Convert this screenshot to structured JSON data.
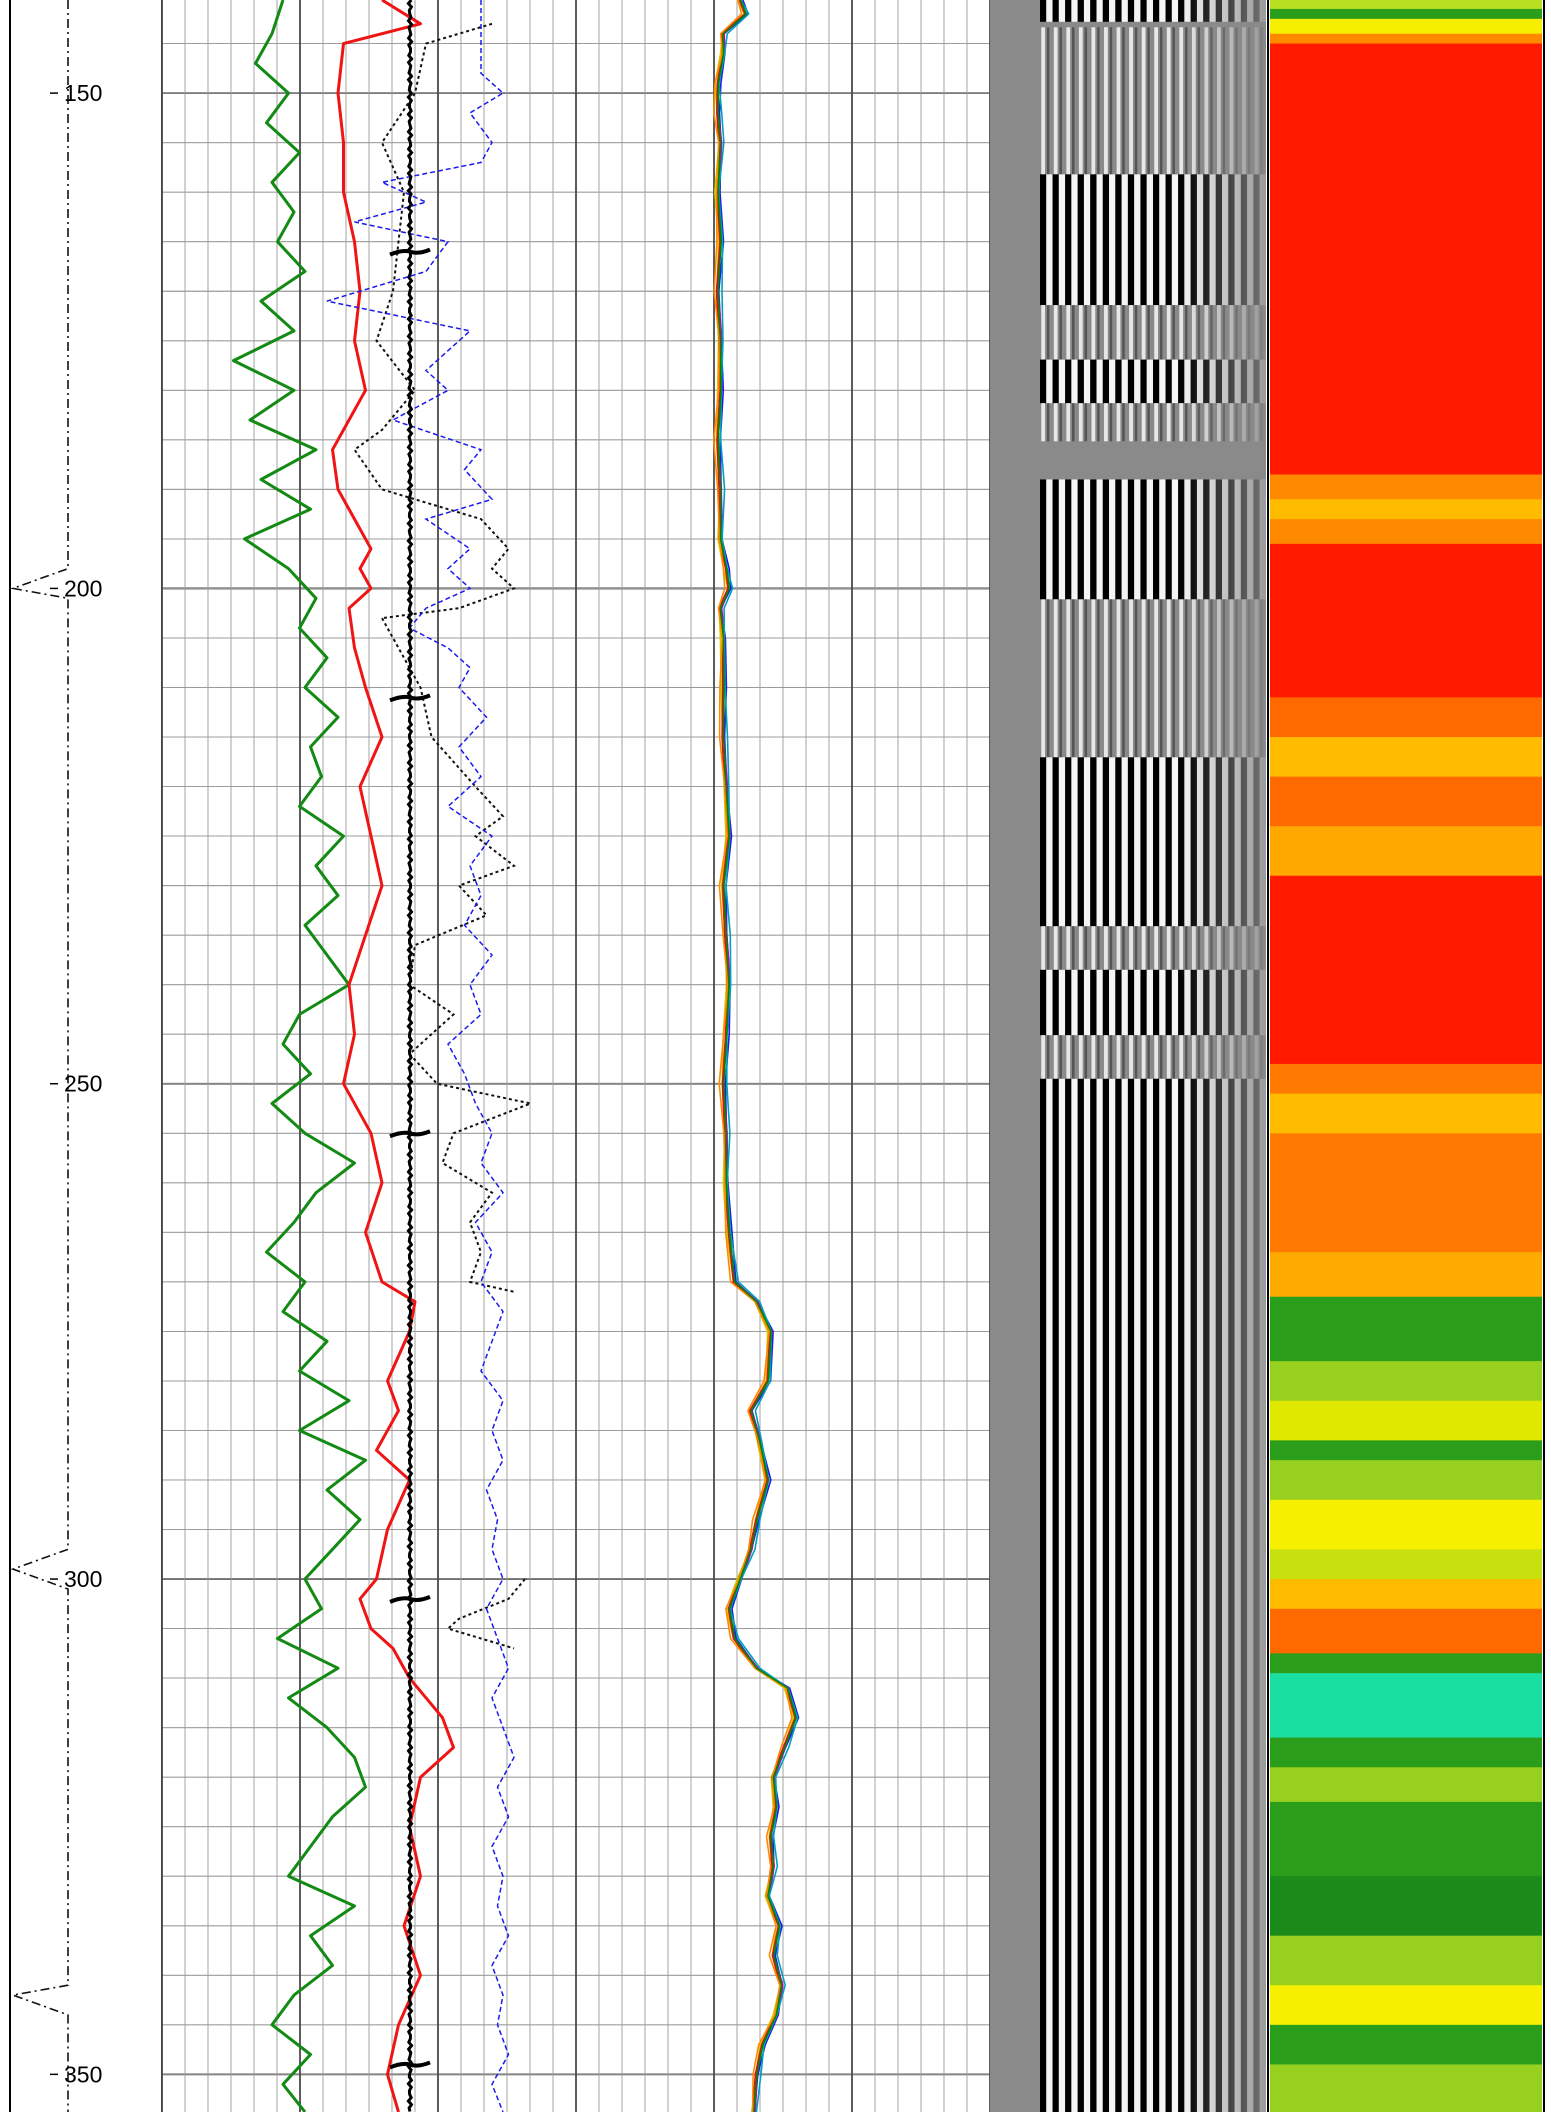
{
  "chart_data": {
    "type": "line",
    "title": "",
    "xlabel": "",
    "ylabel": "",
    "depth_axis": {
      "ylim": [
        140.6,
        353.8
      ],
      "tick_labels": [
        "150",
        "200",
        "250",
        "300",
        "350"
      ],
      "major_ticks": [
        150,
        200,
        250,
        300,
        350
      ],
      "minor_step": 5,
      "grid": true
    },
    "colors": {
      "green_curve": "#138a13",
      "blue_curve": "#1a1aee",
      "red_curve": "#f01414",
      "black_dotted": "#111111",
      "grid_minor": "#9a9a9a",
      "grid_major": "#4a4a4a",
      "gray_panel": "#8a8a8a",
      "heat_red": "#ff1a00",
      "heat_orange": "#ff8a00",
      "heat_yellow": "#f6f000",
      "heat_green": "#2a9d1a",
      "heat_teal": "#19e0a0"
    },
    "track_curves": {
      "xlim": [
        0,
        100
      ],
      "series": [
        {
          "key": "green",
          "style": "solid",
          "depth": [
            140.6,
            144,
            147,
            150,
            153,
            156,
            159,
            162,
            165,
            168,
            171,
            174,
            177,
            180,
            183,
            186,
            189,
            192,
            195,
            198,
            201,
            204,
            207,
            210,
            213,
            216,
            219,
            222,
            225,
            228,
            231,
            234,
            237,
            240,
            243,
            246,
            249,
            252,
            255,
            258,
            261,
            264,
            267,
            270,
            273,
            276,
            279,
            282,
            285,
            288,
            291,
            294,
            297,
            300,
            303,
            306,
            309,
            312,
            315,
            318,
            321,
            324,
            327,
            330,
            333,
            336,
            339,
            342,
            345,
            348,
            351,
            353.8
          ],
          "value": [
            22,
            20,
            17,
            23,
            19,
            25,
            20,
            24,
            21,
            26,
            18,
            24,
            13,
            24,
            16,
            28,
            18,
            27,
            15,
            23,
            28,
            25,
            30,
            26,
            32,
            27,
            29,
            25,
            33,
            28,
            32,
            26,
            30,
            34,
            25,
            22,
            27,
            20,
            26,
            35,
            28,
            24,
            19,
            26,
            22,
            30,
            25,
            34,
            25,
            37,
            30,
            36,
            31,
            26,
            29,
            21,
            32,
            23,
            30,
            35,
            37,
            31,
            27,
            23,
            35,
            27,
            31,
            24,
            20,
            27,
            22,
            26
          ]
        },
        {
          "key": "red",
          "style": "solid",
          "depth": [
            140.6,
            143,
            145,
            150,
            155,
            160,
            165,
            170,
            175,
            180,
            183,
            186,
            190,
            193,
            196,
            198,
            200,
            202,
            206,
            210,
            215,
            220,
            225,
            230,
            235,
            240,
            245,
            250,
            255,
            260,
            265,
            270,
            272,
            275,
            280,
            283,
            287,
            290,
            295,
            300,
            302,
            305,
            307,
            310,
            314,
            317,
            320,
            325,
            330,
            335,
            340,
            345,
            350,
            353.8
          ],
          "value": [
            40,
            47,
            33,
            32,
            33,
            33,
            35,
            36,
            35,
            37,
            34,
            31,
            32,
            35,
            38,
            36,
            38,
            34,
            35,
            37,
            40,
            36,
            38,
            40,
            37,
            34,
            35,
            33,
            38,
            40,
            37,
            40,
            46,
            45,
            41,
            43,
            39,
            45,
            41,
            39,
            36,
            38,
            42,
            45,
            51,
            53,
            47,
            45,
            47,
            44,
            47,
            43,
            41,
            43
          ]
        },
        {
          "key": "black_dotted",
          "style": "dotted",
          "segments": [
            {
              "depth": [
                143,
                145,
                150,
                155,
                160,
                165,
                170,
                175,
                180,
                184,
                186,
                190,
                193,
                196,
                198,
                200,
                202,
                203
              ],
              "value": [
                60,
                48,
                46,
                40,
                44,
                43,
                42,
                39,
                46,
                40,
                35,
                40,
                58,
                63,
                60,
                64,
                54,
                40
              ]
            },
            {
              "depth": [
                203,
                206,
                210,
                215,
                220,
                223,
                225,
                228,
                230,
                233,
                236,
                240,
                243,
                247,
                250,
                252,
                255,
                258,
                261,
                264,
                267,
                270,
                271
              ],
              "value": [
                40,
                43,
                47,
                49,
                57,
                62,
                57,
                64,
                54,
                59,
                46,
                45,
                53,
                45,
                50,
                67,
                53,
                51,
                60,
                56,
                58,
                56,
                64
              ]
            },
            {
              "depth": [
                300,
                302,
                304,
                305,
                307
              ],
              "value": [
                66,
                63,
                54,
                52,
                64
              ]
            }
          ]
        },
        {
          "key": "blue_dashed",
          "style": "dashed",
          "depth": [
            140.6,
            148,
            150,
            152,
            155,
            157,
            159,
            161,
            163,
            165,
            168,
            171,
            174,
            178,
            180,
            183,
            186,
            188,
            191,
            193,
            196,
            198,
            200,
            202,
            204,
            206,
            208,
            210,
            213,
            216,
            219,
            222,
            225,
            228,
            231,
            234,
            237,
            240,
            243,
            246,
            249,
            252,
            255,
            258,
            261,
            264,
            267,
            270,
            273,
            276,
            279,
            282,
            285,
            288,
            291,
            294,
            297,
            300,
            303,
            306,
            309,
            312,
            315,
            318,
            321,
            324,
            327,
            330,
            333,
            336,
            339,
            342,
            345,
            348,
            351,
            353.8
          ],
          "value": [
            58,
            58,
            62,
            56,
            60,
            58,
            40,
            48,
            35,
            52,
            48,
            30,
            56,
            48,
            52,
            42,
            58,
            55,
            60,
            48,
            56,
            52,
            56,
            48,
            45,
            52,
            56,
            54,
            59,
            54,
            58,
            52,
            60,
            56,
            58,
            55,
            60,
            56,
            58,
            52,
            55,
            57,
            60,
            58,
            62,
            57,
            60,
            58,
            62,
            60,
            58,
            62,
            60,
            62,
            59,
            61,
            60,
            62,
            59,
            61,
            63,
            60,
            62,
            64,
            61,
            63,
            60,
            62,
            61,
            63,
            60,
            62,
            61,
            63,
            60,
            62
          ]
        }
      ]
    },
    "track_bundle": {
      "xlim": [
        0,
        100
      ],
      "series": [
        {
          "key": "bundle_center",
          "depth": [
            140.6,
            142,
            144,
            146,
            149,
            152,
            155,
            160,
            165,
            170,
            175,
            180,
            185,
            190,
            195,
            198,
            200,
            202,
            205,
            210,
            215,
            220,
            225,
            230,
            235,
            240,
            245,
            250,
            255,
            260,
            265,
            270,
            272,
            275,
            280,
            283,
            286,
            290,
            294,
            297,
            300,
            303,
            306,
            309,
            311,
            314,
            317,
            320,
            323,
            326,
            329,
            332,
            335,
            338,
            341,
            344,
            347,
            350,
            353.8
          ],
          "value": [
            10,
            12,
            4,
            4,
            2,
            2,
            3,
            2,
            3,
            2,
            3,
            3,
            2,
            3,
            3,
            5,
            6,
            3,
            4,
            4,
            4,
            5,
            6,
            4,
            5,
            6,
            5,
            4,
            5,
            5,
            6,
            8,
            16,
            21,
            20,
            14,
            17,
            20,
            16,
            14,
            10,
            6,
            8,
            16,
            27,
            30,
            26,
            22,
            23,
            21,
            22,
            20,
            24,
            22,
            25,
            23,
            18,
            16,
            15
          ],
          "colors": [
            "#00aa00",
            "#1a1aee",
            "#d4c800",
            "#c000c0",
            "#e01010",
            "#00a0c0",
            "#ff8800",
            "#008800"
          ],
          "offsets": [
            0,
            1.2,
            -1.0,
            0.6,
            -0.5,
            1.6,
            -1.4,
            0.3
          ]
        }
      ]
    },
    "left_dashed_line": {
      "depth": [
        140.6,
        198,
        200,
        201,
        297,
        299,
        301,
        341,
        342,
        344,
        353.8
      ],
      "value": [
        42,
        42,
        8,
        42,
        42,
        8,
        42,
        42,
        8,
        42,
        42
      ]
    },
    "wiggle_curve": {
      "tick_depths": [
        166,
        211,
        255,
        302,
        349
      ]
    },
    "heat_bands": [
      [
        140.6,
        141.5,
        "#b8e020"
      ],
      [
        141.5,
        142.5,
        "#2a9d1a"
      ],
      [
        142.5,
        144.0,
        "#f6f000"
      ],
      [
        144.0,
        145.0,
        "#ff8a00"
      ],
      [
        145.0,
        188.5,
        "#ff1a00"
      ],
      [
        188.5,
        191.0,
        "#ff8a00"
      ],
      [
        191.0,
        193.0,
        "#ffbb00"
      ],
      [
        193.0,
        195.5,
        "#ff8a00"
      ],
      [
        195.5,
        211.0,
        "#ff1a00"
      ],
      [
        211.0,
        215.0,
        "#ff6a00"
      ],
      [
        215.0,
        219.0,
        "#ffbb00"
      ],
      [
        219.0,
        224.0,
        "#ff6a00"
      ],
      [
        224.0,
        229.0,
        "#ffa800"
      ],
      [
        229.0,
        248.0,
        "#ff1a00"
      ],
      [
        248.0,
        251.0,
        "#ff7a00"
      ],
      [
        251.0,
        255.0,
        "#ffbb00"
      ],
      [
        255.0,
        267.0,
        "#ff7a00"
      ],
      [
        267.0,
        271.5,
        "#ffaa00"
      ],
      [
        271.5,
        278.0,
        "#2a9d1a"
      ],
      [
        278.0,
        282.0,
        "#98d020"
      ],
      [
        282.0,
        286.0,
        "#e0e800"
      ],
      [
        286.0,
        288.0,
        "#2a9d1a"
      ],
      [
        288.0,
        292.0,
        "#98d020"
      ],
      [
        292.0,
        297.0,
        "#f6f000"
      ],
      [
        297.0,
        300.0,
        "#c8e010"
      ],
      [
        300.0,
        303.0,
        "#ffbb00"
      ],
      [
        303.0,
        307.5,
        "#ff6a00"
      ],
      [
        307.5,
        309.5,
        "#2a9d1a"
      ],
      [
        309.5,
        316.0,
        "#19e0a0"
      ],
      [
        316.0,
        319.0,
        "#2a9d1a"
      ],
      [
        319.0,
        322.5,
        "#98d020"
      ],
      [
        322.5,
        330.0,
        "#2a9d1a"
      ],
      [
        330.0,
        336.0,
        "#1a8a1a"
      ],
      [
        336.0,
        341.0,
        "#98d020"
      ],
      [
        341.0,
        345.0,
        "#f6f000"
      ],
      [
        345.0,
        349.0,
        "#2a9d1a"
      ],
      [
        349.0,
        353.8,
        "#98d020"
      ]
    ],
    "variable_density": {
      "dense_zones": [
        [
          140.6,
          142.8
        ],
        [
          158,
          171
        ],
        [
          176.5,
          181
        ],
        [
          189,
          201
        ],
        [
          217,
          234
        ],
        [
          238,
          245
        ],
        [
          249,
          353.8
        ]
      ],
      "mid_zones": [
        [
          143,
          158
        ],
        [
          171,
          176.5
        ],
        [
          181,
          185
        ],
        [
          201,
          217
        ],
        [
          234,
          238
        ],
        [
          245,
          249
        ]
      ]
    }
  }
}
